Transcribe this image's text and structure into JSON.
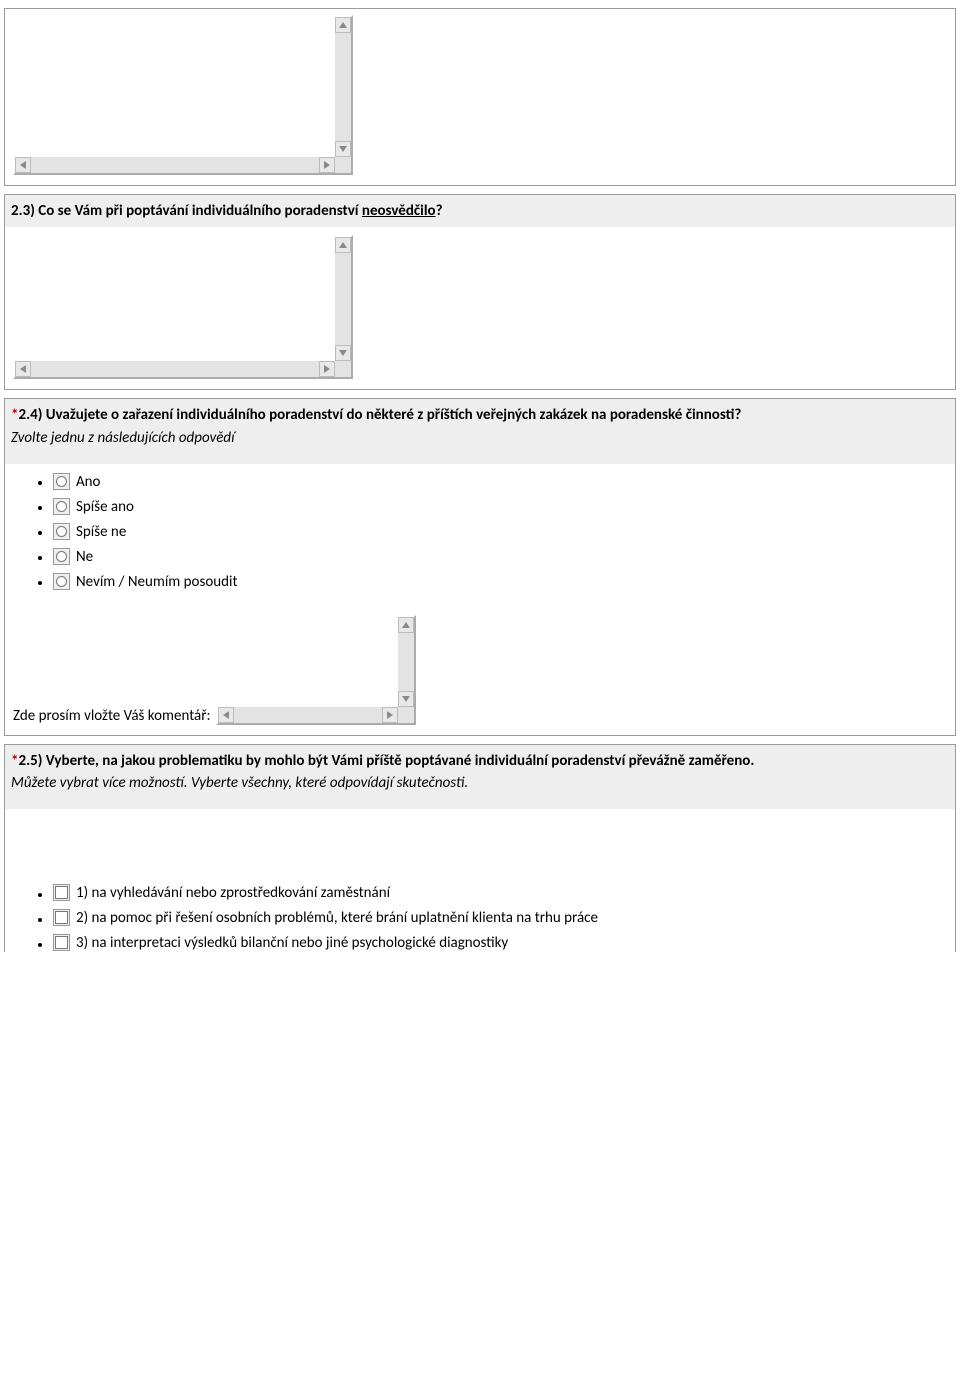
{
  "q2_3": {
    "prefix": "2.3) Co se Vám při poptávání individuálního poradenství ",
    "underlined": "neosvědčilo",
    "suffix": "?"
  },
  "q2_4": {
    "star": "*",
    "title": "2.4) Uvažujete o zařazení individuálního poradenství do některé z příštích veřejných zakázek na poradenské činnosti?",
    "instruction": "Zvolte jednu z následujících odpovědí",
    "options": [
      "Ano",
      "Spíše ano",
      "Spíše ne",
      "Ne",
      "Nevím / Neumím posoudit"
    ],
    "comment_label": "Zde prosím vložte Váš komentář:"
  },
  "q2_5": {
    "star": "*",
    "title": "2.5) Vyberte, na jakou problematiku by mohlo být Vámi příště poptávané individuální poradenství převážně zaměřeno.",
    "instruction1": "Můžete vybrat více možností.",
    "instruction2": " Vyberte všechny, které odpovídají skutečnosti.",
    "options": [
      "1) na vyhledávání nebo zprostředkování zaměstnání",
      "2) na pomoc při řešení osobních problémů, které brání uplatnění klienta na trhu práce",
      "3) na interpretaci výsledků bilanční nebo jiné psychologické diagnostiky"
    ]
  }
}
